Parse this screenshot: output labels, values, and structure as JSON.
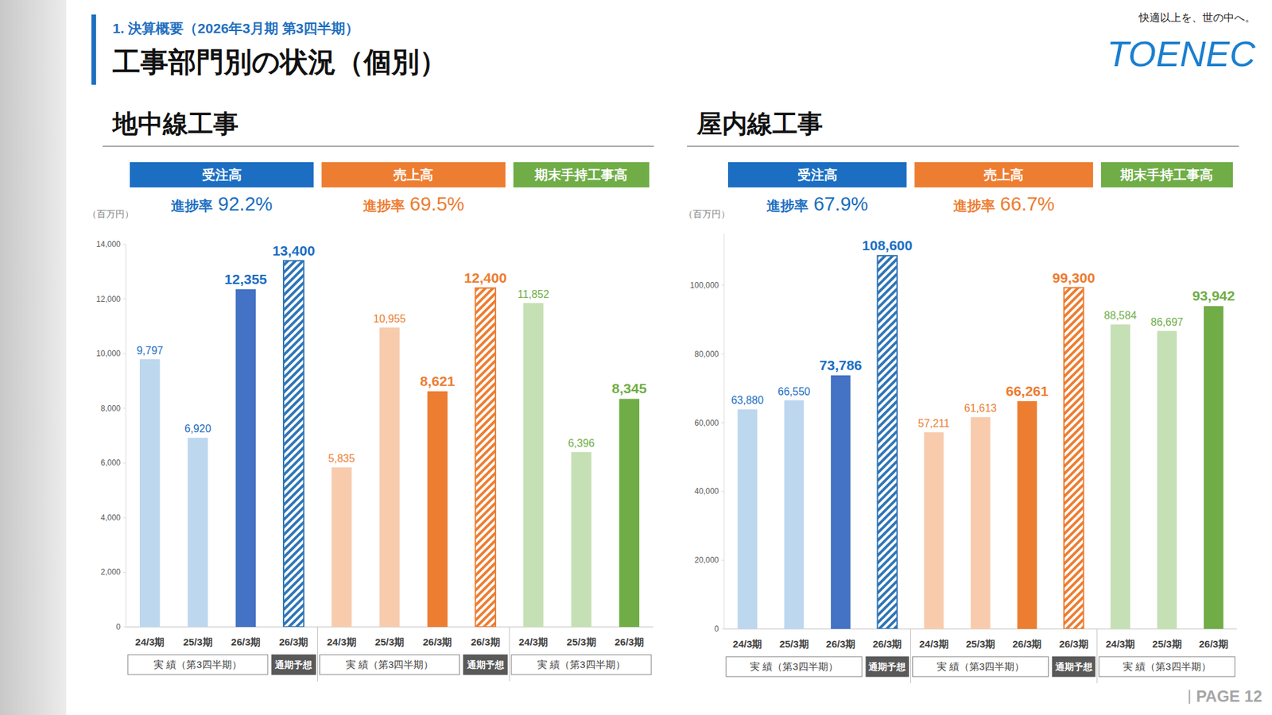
{
  "header": {
    "section": "1. 決算概要（2026年3月期 第3四半期）",
    "title": "工事部門別の状況（個別）",
    "tagline": "快適以上を、世の中へ。",
    "logo": "TOENEC"
  },
  "page": "PAGE 12",
  "chart_data": [
    {
      "type": "bar",
      "title": "地中線工事",
      "y_label": "（百万円）",
      "ylim": [
        0,
        14000
      ],
      "yticks": [
        0,
        {
          "value": 2000,
          "label": "2,000"
        },
        {
          "value": 4000,
          "label": "4,000"
        },
        {
          "value": 6000,
          "label": "6,000"
        },
        {
          "value": 8000,
          "label": "8,000"
        },
        {
          "value": 10000,
          "label": "10,000"
        },
        {
          "value": 12000,
          "label": "12,000"
        },
        {
          "value": 14000,
          "label": "14,000"
        }
      ],
      "grid": false,
      "data_labels": true,
      "groups": [
        {
          "name": "受注高",
          "color": "#1b6ec2",
          "progress": {
            "label": "進捗率",
            "value": "92.2%"
          },
          "series": [
            {
              "name": "実 績（第3四半期）",
              "categories": [
                "24/3期",
                "25/3期",
                "26/3期"
              ],
              "values": [
                9797,
                6920,
                12355
              ],
              "value_labels": [
                "9,797",
                "6,920",
                "12,355"
              ],
              "colors": [
                "#bdd7ee",
                "#bdd7ee",
                "#4472c4"
              ]
            },
            {
              "name": "通期予想",
              "categories": [
                "26/3期"
              ],
              "values": [
                13400
              ],
              "value_labels": [
                "13,400"
              ],
              "color": "#2e75b6",
              "line_style": "hatched"
            }
          ]
        },
        {
          "name": "売上高",
          "color": "#ed7d31",
          "progress": {
            "label": "進捗率",
            "value": "69.5%"
          },
          "series": [
            {
              "name": "実 績（第3四半期）",
              "categories": [
                "24/3期",
                "25/3期",
                "26/3期"
              ],
              "values": [
                5835,
                10955,
                8621
              ],
              "value_labels": [
                "5,835",
                "10,955",
                "8,621"
              ],
              "colors": [
                "#f8cbad",
                "#f8cbad",
                "#ed7d31"
              ]
            },
            {
              "name": "通期予想",
              "categories": [
                "26/3期"
              ],
              "values": [
                12400
              ],
              "value_labels": [
                "12,400"
              ],
              "color": "#ed7d31",
              "line_style": "hatched"
            }
          ]
        },
        {
          "name": "期末手持工事高",
          "color": "#70ad47",
          "series": [
            {
              "name": "実 績（第3四半期）",
              "categories": [
                "24/3期",
                "25/3期",
                "26/3期"
              ],
              "values": [
                11852,
                6396,
                8345
              ],
              "value_labels": [
                "11,852",
                "6,396",
                "8,345"
              ],
              "colors": [
                "#c5e0b4",
                "#c5e0b4",
                "#70ad47"
              ]
            }
          ]
        }
      ]
    },
    {
      "type": "bar",
      "title": "屋内線工事",
      "y_label": "（百万円）",
      "ylim": [
        0,
        115000
      ],
      "yticks": [
        0,
        {
          "value": 20000,
          "label": "20,000"
        },
        {
          "value": 40000,
          "label": "40,000"
        },
        {
          "value": 60000,
          "label": "60,000"
        },
        {
          "value": 80000,
          "label": "80,000"
        },
        {
          "value": 100000,
          "label": "100,000"
        }
      ],
      "grid": false,
      "data_labels": true,
      "groups": [
        {
          "name": "受注高",
          "color": "#1b6ec2",
          "progress": {
            "label": "進捗率",
            "value": "67.9%"
          },
          "series": [
            {
              "name": "実 績（第3四半期）",
              "categories": [
                "24/3期",
                "25/3期",
                "26/3期"
              ],
              "values": [
                63880,
                66550,
                73786
              ],
              "value_labels": [
                "63,880",
                "66,550",
                "73,786"
              ],
              "colors": [
                "#bdd7ee",
                "#bdd7ee",
                "#4472c4"
              ]
            },
            {
              "name": "通期予想",
              "categories": [
                "26/3期"
              ],
              "values": [
                108600
              ],
              "value_labels": [
                "108,600"
              ],
              "color": "#2e75b6",
              "line_style": "hatched"
            }
          ]
        },
        {
          "name": "売上高",
          "color": "#ed7d31",
          "progress": {
            "label": "進捗率",
            "value": "66.7%"
          },
          "series": [
            {
              "name": "実 績（第3四半期）",
              "categories": [
                "24/3期",
                "25/3期",
                "26/3期"
              ],
              "values": [
                57211,
                61613,
                66261
              ],
              "value_labels": [
                "57,211",
                "61,613",
                "66,261"
              ],
              "colors": [
                "#f8cbad",
                "#f8cbad",
                "#ed7d31"
              ]
            },
            {
              "name": "通期予想",
              "categories": [
                "26/3期"
              ],
              "values": [
                99300
              ],
              "value_labels": [
                "99,300"
              ],
              "color": "#ed7d31",
              "line_style": "hatched"
            }
          ]
        },
        {
          "name": "期末手持工事高",
          "color": "#70ad47",
          "series": [
            {
              "name": "実 績（第3四半期）",
              "categories": [
                "24/3期",
                "25/3期",
                "26/3期"
              ],
              "values": [
                88584,
                86697,
                93942
              ],
              "value_labels": [
                "88,584",
                "86,697",
                "93,942"
              ],
              "colors": [
                "#c5e0b4",
                "#c5e0b4",
                "#70ad47"
              ]
            }
          ]
        }
      ]
    }
  ]
}
